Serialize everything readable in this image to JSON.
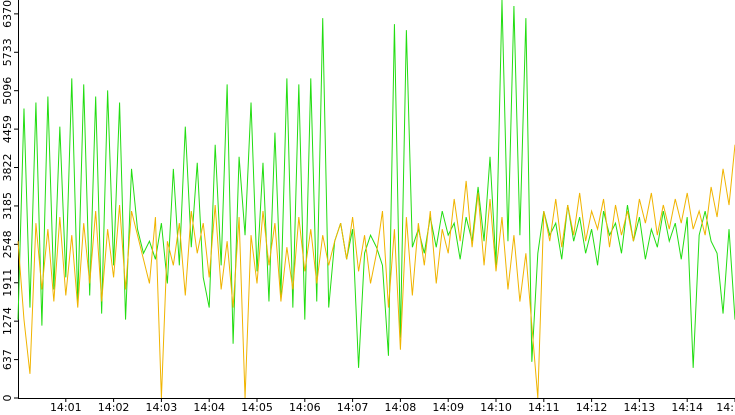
{
  "chart_data": {
    "type": "line",
    "x": [
      0,
      0.125,
      0.25,
      0.375,
      0.5,
      0.625,
      0.75,
      0.875,
      1,
      1.125,
      1.25,
      1.375,
      1.5,
      1.625,
      1.75,
      1.875,
      2,
      2.125,
      2.25,
      2.375,
      2.5,
      2.625,
      2.75,
      2.875,
      3,
      3.125,
      3.25,
      3.375,
      3.5,
      3.625,
      3.75,
      3.875,
      4,
      4.125,
      4.25,
      4.375,
      4.5,
      4.625,
      4.75,
      4.875,
      5,
      5.125,
      5.25,
      5.375,
      5.5,
      5.625,
      5.75,
      5.875,
      6,
      6.125,
      6.25,
      6.375,
      6.5,
      6.625,
      6.75,
      6.875,
      7,
      7.125,
      7.25,
      7.375,
      7.5,
      7.625,
      7.75,
      7.875,
      8,
      8.125,
      8.25,
      8.375,
      8.5,
      8.625,
      8.75,
      8.875,
      9,
      9.125,
      9.25,
      9.375,
      9.5,
      9.625,
      9.75,
      9.875,
      10,
      10.125,
      10.25,
      10.375,
      10.5,
      10.625,
      10.75,
      10.875,
      11,
      11.125,
      11.25,
      11.375,
      11.5,
      11.625,
      11.75,
      11.875,
      12,
      12.125,
      12.25,
      12.375,
      12.5,
      12.625,
      12.75,
      12.875,
      13,
      13.125,
      13.25,
      13.375,
      13.5,
      13.625,
      13.75,
      13.875,
      14,
      14.125,
      14.25,
      14.375,
      14.5,
      14.625,
      14.75,
      14.875,
      15
    ],
    "series": [
      {
        "color": "#22dd11",
        "values": [
          1300,
          4800,
          1500,
          4900,
          1200,
          5000,
          1800,
          4500,
          2000,
          5300,
          1600,
          5200,
          1700,
          5000,
          1400,
          5100,
          2200,
          4900,
          1300,
          3800,
          2800,
          2400,
          2600,
          2300,
          2900,
          1900,
          3800,
          2200,
          4500,
          2500,
          3900,
          2000,
          1500,
          4200,
          2200,
          5200,
          900,
          4000,
          2700,
          4900,
          2100,
          3900,
          1600,
          4400,
          1700,
          5300,
          1500,
          5200,
          1300,
          5300,
          1600,
          6300,
          1500,
          2600,
          2900,
          2300,
          2800,
          500,
          2400,
          2700,
          2500,
          2200,
          700,
          6200,
          1000,
          6100,
          2500,
          2800,
          2400,
          3000,
          2500,
          3100,
          2700,
          2900,
          2300,
          3000,
          2600,
          3500,
          2600,
          4000,
          2200,
          6600,
          2600,
          6500,
          2700,
          6300,
          600,
          2400,
          3100,
          2700,
          2900,
          2300,
          3200,
          2600,
          3000,
          2400,
          2800,
          2200,
          3100,
          2700,
          2900,
          2400,
          3200,
          2600,
          3000,
          2300,
          2800,
          2500,
          3100,
          2600,
          2900,
          2300,
          3000,
          500,
          2700,
          3100,
          2600,
          2400,
          1400,
          2800,
          1300
        ]
      },
      {
        "color": "#f0b400",
        "values": [
          2600,
          1300,
          400,
          2900,
          1800,
          2800,
          1600,
          3000,
          1700,
          2700,
          1500,
          2900,
          1900,
          3100,
          1600,
          2800,
          2000,
          3200,
          1800,
          3100,
          2700,
          2300,
          1900,
          3000,
          0,
          2600,
          2200,
          2900,
          1700,
          3100,
          2400,
          2900,
          2000,
          3200,
          1800,
          2600,
          1500,
          3000,
          0,
          2700,
          1900,
          3100,
          2200,
          2900,
          1600,
          2500,
          1800,
          3000,
          2100,
          2800,
          1900,
          2700,
          2200,
          2600,
          2900,
          2300,
          3000,
          2100,
          2700,
          1900,
          2400,
          3100,
          1500,
          2800,
          800,
          3000,
          1700,
          2900,
          2200,
          3100,
          1900,
          2800,
          2400,
          3300,
          2600,
          3600,
          2500,
          3400,
          2200,
          3300,
          2100,
          3000,
          1800,
          2700,
          1600,
          2400,
          1200,
          0,
          3100,
          2600,
          3300,
          2500,
          3200,
          2700,
          3400,
          2600,
          3100,
          2800,
          3300,
          2500,
          3200,
          2700,
          3100,
          2600,
          3300,
          2900,
          3400,
          2700,
          3200,
          2800,
          3300,
          2900,
          3400,
          2800,
          3100,
          2700,
          3500,
          3000,
          3800,
          3200,
          4200
        ]
      }
    ],
    "xlim": [
      0,
      15
    ],
    "xticks": [
      {
        "value": 1,
        "label": "14:01"
      },
      {
        "value": 2,
        "label": "14:02"
      },
      {
        "value": 3,
        "label": "14:03"
      },
      {
        "value": 4,
        "label": "14:04"
      },
      {
        "value": 5,
        "label": "14:05"
      },
      {
        "value": 6,
        "label": "14:06"
      },
      {
        "value": 7,
        "label": "14:07"
      },
      {
        "value": 8,
        "label": "14:08"
      },
      {
        "value": 9,
        "label": "14:09"
      },
      {
        "value": 10,
        "label": "14:10"
      },
      {
        "value": 11,
        "label": "14:11"
      },
      {
        "value": 12,
        "label": "14:12"
      },
      {
        "value": 13,
        "label": "14:13"
      },
      {
        "value": 14,
        "label": "14:14"
      },
      {
        "value": 15,
        "label": "14:"
      }
    ],
    "ylim": [
      0,
      6600
    ],
    "yticks": [
      0,
      637,
      1274,
      1911,
      2548,
      3185,
      3822,
      4459,
      5096,
      5733,
      6370
    ]
  }
}
